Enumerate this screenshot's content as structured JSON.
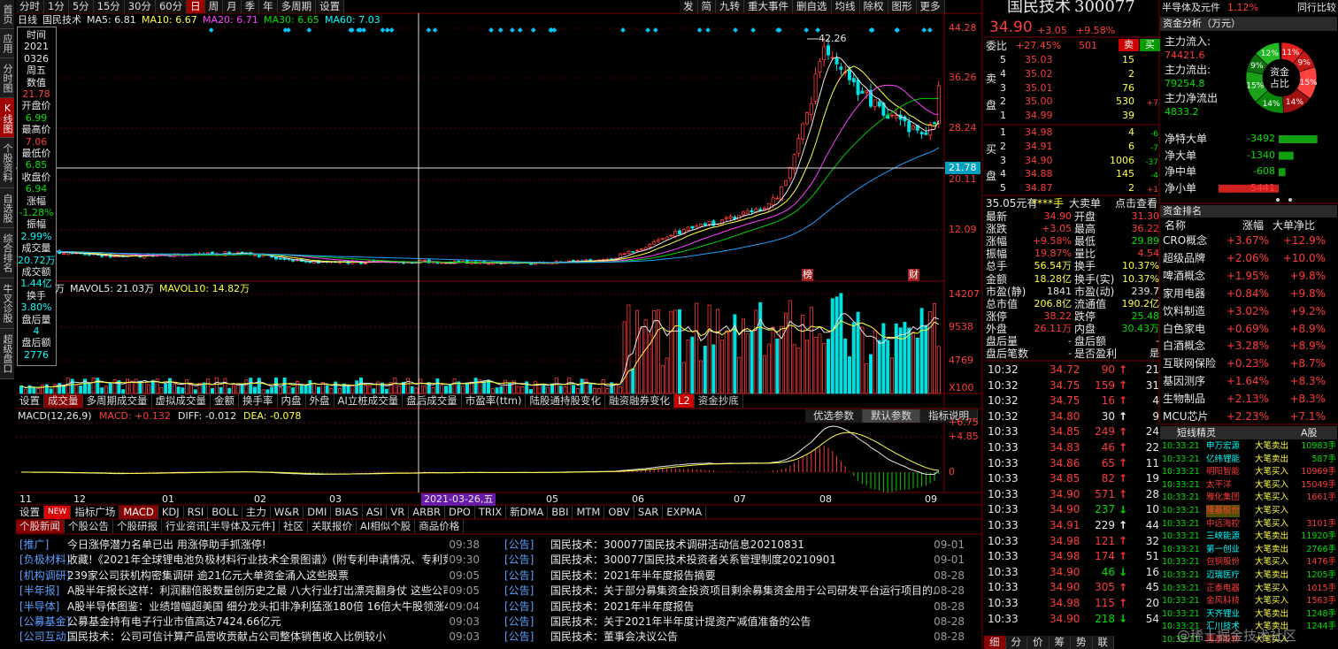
{
  "sidebar": [
    "首页",
    "应用",
    "分时图",
    "K线图",
    "个股资料",
    "自选股",
    "综合排名",
    "牛叉诊股",
    "超级盘口"
  ],
  "toolbar": {
    "periods": [
      "分时",
      "1分",
      "5分",
      "15分",
      "30分",
      "60分",
      "日",
      "周",
      "月",
      "季",
      "年",
      "多周期",
      "设置"
    ],
    "actions": [
      "发",
      "简",
      "九转",
      "重大事件",
      "删自选",
      "均线",
      "除权",
      "图形",
      "更多"
    ]
  },
  "kline": {
    "header": [
      "日线",
      "国民技术",
      "MA5: 6.81",
      "MA10: 6.67",
      "MA20: 6.71",
      "MA30: 6.65",
      "MA60: 7.03"
    ],
    "price_axis": [
      "44.28",
      "36.26",
      "28.24",
      "20.11",
      "12.09"
    ],
    "cursor_value": "21.78",
    "high_mark": "42.26",
    "markers": [
      "榜",
      "财"
    ]
  },
  "info_box": [
    [
      "时间",
      "2021",
      "0326",
      "周五"
    ],
    [
      "数值",
      "21.78"
    ],
    [
      "开盘价",
      "6.99"
    ],
    [
      "最高价",
      "7.06"
    ],
    [
      "最低价",
      "6.85"
    ],
    [
      "收盘价",
      "6.94"
    ],
    [
      "涨幅",
      "-1.28%"
    ],
    [
      "振幅",
      "2.99%"
    ],
    [
      "成交量",
      "20.72万"
    ],
    [
      "成交额",
      "1.44亿"
    ],
    [
      "换手",
      "3.80%"
    ],
    [
      "盘后量",
      "4"
    ],
    [
      "盘后额",
      "2776"
    ]
  ],
  "volume": {
    "header": [
      "万",
      "MAVOL5: 21.03万",
      "MAVOL10: 14.82万"
    ],
    "axis": [
      "14207",
      "9538",
      "4769",
      "X100"
    ]
  },
  "indicator_tabs": [
    "设置",
    "成交量",
    "多周期成交量",
    "虚拟成交量",
    "金额",
    "换手率",
    "内盘",
    "外盘",
    "AI立桩成交量",
    "盘后成交量",
    "市盈率(ttm)",
    "陆股通持股变化",
    "融资融券变化",
    "L2",
    "资金抄底"
  ],
  "macd": {
    "header": [
      "MACD(12,26,9)",
      "MACD: +0.132",
      "DIFF: -0.012",
      "DEA: -0.078"
    ],
    "buttons": [
      "优选参数",
      "默认参数",
      "指标说明"
    ],
    "axis": [
      "+6.75",
      "+4.85",
      "0"
    ]
  },
  "date_axis": [
    "11",
    "12",
    "01",
    "02",
    "03",
    "2021-03-26,五",
    "05",
    "06",
    "07",
    "08",
    "09"
  ],
  "bottom_tabs": [
    "设置",
    "NEW",
    "指标广场",
    "MACD",
    "KDJ",
    "RSI",
    "BOLL",
    "主力",
    "W&R",
    "DMI",
    "BIAS",
    "ASI",
    "VR",
    "ARBR",
    "DPO",
    "TRIX",
    "新DMA",
    "BBI",
    "MTM",
    "OBV",
    "SAR",
    "EXPMA"
  ],
  "news": {
    "tabs": [
      "个股新闻",
      "个股公告",
      "个股研报",
      "行业资讯[半导体及元件]",
      "社区",
      "关联报价",
      "AI相似个股",
      "商品价格"
    ],
    "left": [
      [
        "[推广]",
        "今日涨停潜力名单已出 用涨停助手抓涨停!",
        "09:38"
      ],
      [
        "[负极材料]",
        "收藏!《2021年全球锂电池负极材料行业技术全景图谱》(附专利申请情况、专利竞...",
        "09:30"
      ],
      [
        "[机构调研]",
        "239家公司获机构密集调研 逾21亿元大单资金涌入这些股票",
        "09:05"
      ],
      [
        "[半年报]",
        "A股半年报长这样：利润翻倍股数量创历史之最 八大行业打出漂亮翻身仗 这些公司...",
        "09:05"
      ],
      [
        "[半导体]",
        "A股半导体图鉴：业绩增幅超美国 细分龙头扣非净利猛涨180倍 16倍大牛股领涨4万...",
        "09:04"
      ],
      [
        "[公募基金]",
        "公募基金持有电子行业市值高达7424.66亿元",
        "09:03"
      ],
      [
        "[公司互动]",
        "国民技术：公司可信计算产品营收贡献占公司整体销售收入比例较小",
        "09:03"
      ]
    ],
    "right": [
      [
        "[公告]",
        "国民技术：300077国民技术调研活动信息20210831",
        "09-01"
      ],
      [
        "[公告]",
        "国民技术：300077国民技术投资者关系管理制度20210901",
        "09-01"
      ],
      [
        "[公告]",
        "国民技术：2021年半年度报告摘要",
        "08-28"
      ],
      [
        "[公告]",
        "国民技术：关于部分募集资金投资项目剩余募集资金用于公司研发平台运行项目的...",
        "08-28"
      ],
      [
        "[公告]",
        "国民技术：2021年半年度报告",
        "08-28"
      ],
      [
        "[公告]",
        "国民技术：关于2021年半年度计提资产减值准备的公告",
        "08-28"
      ],
      [
        "[公告]",
        "国民技术：董事会决议公告",
        "08-28"
      ]
    ]
  },
  "quote": {
    "name": "国民技术",
    "code": "300077",
    "price": "34.90",
    "change": "+3.05",
    "change_pct": "+9.58%",
    "ratio_label": "委比",
    "ratio": "+27.45%",
    "ratio_diff": "501",
    "sell_button": "卖",
    "buy_button": "买",
    "sell_label": "卖盘",
    "buy_label": "买盘",
    "sells": [
      {
        "level": "5",
        "price": "35.03",
        "volume": "15"
      },
      {
        "level": "4",
        "price": "35.02",
        "volume": "2"
      },
      {
        "level": "3",
        "price": "35.01",
        "volume": "76"
      },
      {
        "level": "2",
        "price": "35.00",
        "volume": "530",
        "change": "+7"
      },
      {
        "level": "1",
        "price": "34.99",
        "volume": "39"
      }
    ],
    "buys": [
      {
        "level": "1",
        "price": "34.98",
        "volume": "4",
        "change": "-6"
      },
      {
        "level": "2",
        "price": "34.91",
        "volume": "6",
        "change": "-7"
      },
      {
        "level": "3",
        "price": "34.90",
        "volume": "1006",
        "change": "-37"
      },
      {
        "level": "4",
        "price": "34.88",
        "volume": "145",
        "change": "-4"
      },
      {
        "level": "5",
        "price": "34.87",
        "volume": "2",
        "change": "+1"
      }
    ],
    "big_order": [
      "35.05元有",
      "****手",
      "大卖单",
      "点击查看"
    ],
    "stats": [
      [
        "最新",
        "34.90",
        "开盘",
        "31.30"
      ],
      [
        "涨跌",
        "+3.05",
        "最高",
        "36.22"
      ],
      [
        "涨幅",
        "+9.58%",
        "最低",
        "29.89"
      ],
      [
        "振幅",
        "19.87%",
        "量比",
        "4.54"
      ],
      [
        "总手",
        "56.54万",
        "换手",
        "10.37%"
      ],
      [
        "金额",
        "18.28亿",
        "换手(实)",
        "10.37%"
      ],
      [
        "市盈(静)",
        "1841",
        "市盈(动)",
        "239.7"
      ],
      [
        "总市值",
        "206.8亿",
        "流通值",
        "190.2亿"
      ],
      [
        "涨停",
        "38.22",
        "跌停",
        "25.48"
      ],
      [
        "外盘",
        "26.11万",
        "内盘",
        "30.43万"
      ],
      [
        "盘后量",
        "-",
        "盘后额",
        "-"
      ],
      [
        "盘后笔数",
        "-",
        "是否盈利",
        "是"
      ]
    ],
    "trades": [
      {
        "time": "10:32",
        "price": "34.72",
        "volume": "90",
        "dir": "up",
        "count": "21"
      },
      {
        "time": "10:32",
        "price": "34.75",
        "volume": "159",
        "dir": "up",
        "count": "31"
      },
      {
        "time": "10:32",
        "price": "34.75",
        "volume": "16",
        "dir": "up",
        "count": "4"
      },
      {
        "time": "10:32",
        "price": "34.80",
        "volume": "30",
        "dir": "neutral",
        "count": "9"
      },
      {
        "time": "10:33",
        "price": "34.85",
        "volume": "249",
        "dir": "up",
        "count": "24"
      },
      {
        "time": "10:33",
        "price": "34.83",
        "volume": "46",
        "dir": "up",
        "count": "22"
      },
      {
        "time": "10:33",
        "price": "34.86",
        "volume": "65",
        "dir": "up",
        "count": "11"
      },
      {
        "time": "10:33",
        "price": "34.85",
        "volume": "82",
        "dir": "up",
        "count": "19"
      },
      {
        "time": "10:33",
        "price": "34.90",
        "volume": "571",
        "dir": "up",
        "count": "28"
      },
      {
        "time": "10:33",
        "price": "34.90",
        "volume": "237",
        "dir": "down",
        "count": "10"
      },
      {
        "time": "10:33",
        "price": "34.91",
        "volume": "229",
        "dir": "neutral",
        "count": "44"
      },
      {
        "time": "10:33",
        "price": "34.98",
        "volume": "121",
        "dir": "up",
        "count": "32"
      },
      {
        "time": "10:33",
        "price": "34.98",
        "volume": "174",
        "dir": "up",
        "count": "51"
      },
      {
        "time": "10:33",
        "price": "34.90",
        "volume": "46",
        "dir": "down",
        "count": "16"
      },
      {
        "time": "10:33",
        "price": "34.90",
        "volume": "305",
        "dir": "up",
        "count": "45"
      },
      {
        "time": "10:33",
        "price": "34.98",
        "volume": "115",
        "dir": "up",
        "count": "20"
      },
      {
        "time": "10:33",
        "price": "34.90",
        "volume": "218",
        "dir": "down",
        "count": "54"
      }
    ],
    "tabs": [
      "细",
      "分",
      "价",
      "筹",
      "势",
      "联"
    ]
  },
  "funds": {
    "sector": "半导体及元件",
    "sector_change": "1.12%",
    "peer_button": "同行比较",
    "title": "资金分析（万元）",
    "flows": [
      [
        "主力流入:",
        "74421.6"
      ],
      [
        "主力流出:",
        "79254.8"
      ],
      [
        "主力净流出",
        "4833.2"
      ]
    ],
    "share": {
      "values": [
        11,
        9,
        15,
        14,
        14,
        15,
        9,
        12
      ],
      "value_labels": [
        "11%",
        "9%",
        "15%",
        "14%",
        "14%",
        "15%",
        "9%",
        "12%"
      ],
      "center": "资金占比"
    },
    "net": [
      [
        "净特大单",
        -3492
      ],
      [
        "净大单",
        -1340
      ],
      [
        "净中单",
        -608
      ],
      [
        "净小单",
        5441
      ]
    ]
  },
  "ranking": {
    "title": "资金排名",
    "columns": [
      "名称",
      "涨幅",
      "大单净比"
    ],
    "rows": [
      [
        "CRO概念",
        "+3.67%",
        "+12.9%"
      ],
      [
        "超级品牌",
        "+2.06%",
        "+10.0%"
      ],
      [
        "啤酒概念",
        "+1.95%",
        "+9.8%"
      ],
      [
        "家用电器",
        "+0.84%",
        "+9.8%"
      ],
      [
        "饮料制造",
        "+3.02%",
        "+9.2%"
      ],
      [
        "白色家电",
        "+0.69%",
        "+8.9%"
      ],
      [
        "白酒概念",
        "+3.28%",
        "+8.9%"
      ],
      [
        "互联网保险",
        "+0.23%",
        "+8.7%"
      ],
      [
        "基因测序",
        "+1.64%",
        "+8.3%"
      ],
      [
        "生物制品",
        "+2.13%",
        "+8.3%"
      ],
      [
        "MCU芯片",
        "+2.23%",
        "+7.1%"
      ]
    ]
  },
  "sprite": {
    "title": "短线精灵",
    "market": "A股",
    "rows": [
      [
        "10:33:21",
        "申万宏源",
        "大笔卖出",
        "10983手"
      ],
      [
        "10:33:21",
        "亿纬锂能",
        "大笔卖出",
        "587手"
      ],
      [
        "10:33:21",
        "明阳智能",
        "大笔买入",
        "10969手"
      ],
      [
        "10:33:21",
        "太平洋",
        "大笔买入",
        "15049手"
      ],
      [
        "10:33:21",
        "雅化集团",
        "大笔买入",
        "1661手"
      ],
      [
        "10:33:21",
        "隆基股份",
        "大笔买入"
      ],
      [
        "10:33:21",
        "中远海控",
        "大笔买入",
        "3101手"
      ],
      [
        "10:33:21",
        "三峡能源",
        "大笔卖出",
        "11920手"
      ],
      [
        "10:33:21",
        "第一创业",
        "大笔卖出",
        "2766手"
      ],
      [
        "10:33:21",
        "包钢股份",
        "大笔买入",
        "1476手"
      ],
      [
        "10:33:21",
        "迈瑞医疗",
        "大笔卖出",
        "1205手"
      ],
      [
        "10:33:21",
        "正泰电器",
        "大笔买入",
        "1015手"
      ],
      [
        "10:33:21",
        "金风科技",
        "大笔买入",
        "1563手"
      ],
      [
        "10:33:21",
        "天齐锂业",
        "大笔卖出",
        "1248手"
      ],
      [
        "10:33:21",
        "汇川技术",
        "大笔卖出",
        "1244手"
      ],
      [
        "10:33:21",
        "隆基股份",
        "大笔买入"
      ]
    ]
  },
  "watermark": "@稀土掘金技术社区"
}
